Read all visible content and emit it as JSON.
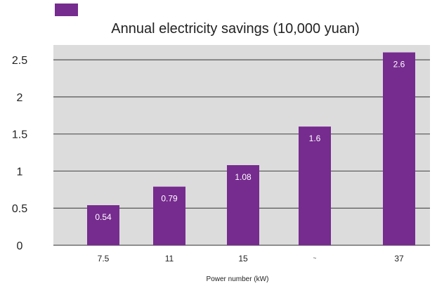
{
  "chart_data": {
    "type": "bar",
    "title": "Annual electricity savings (10,000 yuan)",
    "xlabel": "Power number (kW)",
    "ylabel": "",
    "categories": [
      "7.5",
      "11",
      "15",
      "~",
      "37"
    ],
    "series": [
      {
        "values": [
          0.54,
          0.79,
          1.08,
          1.6,
          2.6
        ]
      }
    ],
    "data_labels": [
      "0.54",
      "0.79",
      "1.08",
      "1.6",
      "2.6"
    ],
    "yticks": [
      "0",
      "0.5",
      "1",
      "1.5",
      "2",
      "2.5"
    ],
    "ylim": [
      0,
      2.7
    ],
    "grid": true,
    "legend": "top-left",
    "colors": {
      "bar": "#762b8f",
      "plot_background": "#dcdcdc",
      "gridline": "#555555"
    }
  }
}
